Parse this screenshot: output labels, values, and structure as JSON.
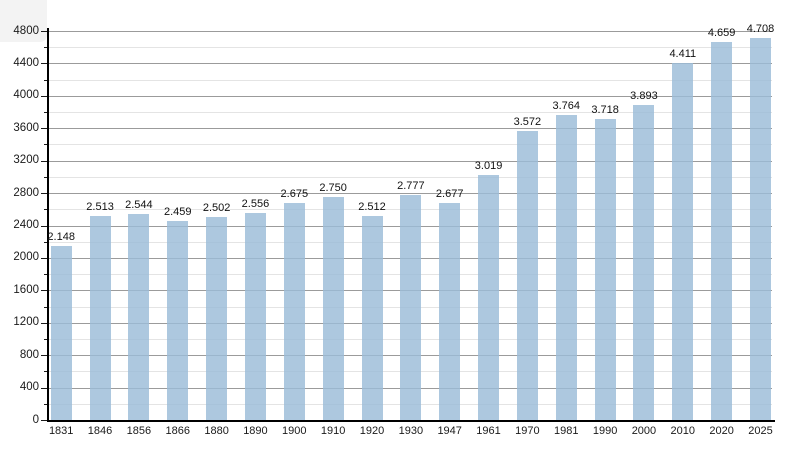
{
  "chart_data": {
    "type": "bar",
    "title": "",
    "xlabel": "",
    "ylabel": "",
    "legend": "none",
    "grid": "horizontal major and minor gridlines",
    "categories": [
      "1831",
      "1846",
      "1856",
      "1866",
      "1880",
      "1890",
      "1900",
      "1910",
      "1920",
      "1930",
      "1947",
      "1961",
      "1970",
      "1981",
      "1990",
      "2000",
      "2010",
      "2020",
      "2025"
    ],
    "values": [
      2148,
      2513,
      2544,
      2459,
      2502,
      2556,
      2675,
      2750,
      2512,
      2777,
      2677,
      3019,
      3572,
      3764,
      3718,
      3893,
      4411,
      4659,
      4708
    ],
    "value_labels": [
      "2.148",
      "2.513",
      "2.544",
      "2.459",
      "2.502",
      "2.556",
      "2.675",
      "2.750",
      "2.512",
      "2.777",
      "2.677",
      "3.019",
      "3.572",
      "3.764",
      "3.718",
      "3.893",
      "4.411",
      "4.659",
      "4.708"
    ],
    "ylim": [
      0,
      4800
    ],
    "yticks_major": [
      0,
      400,
      800,
      1200,
      1600,
      2000,
      2400,
      2800,
      3200,
      3600,
      4000,
      4400,
      4800
    ],
    "yticks_minor": [
      200,
      600,
      1000,
      1400,
      1800,
      2200,
      2600,
      3000,
      3400,
      3800,
      4200,
      4600
    ],
    "colors": {
      "bar_fill": "#adc8df",
      "major_grid": "#9b9b9b",
      "minor_grid": "#e4e4e4",
      "axis": "#000000",
      "label_text": "#1a1a1a",
      "corner_box": "#f3f3f3"
    }
  }
}
